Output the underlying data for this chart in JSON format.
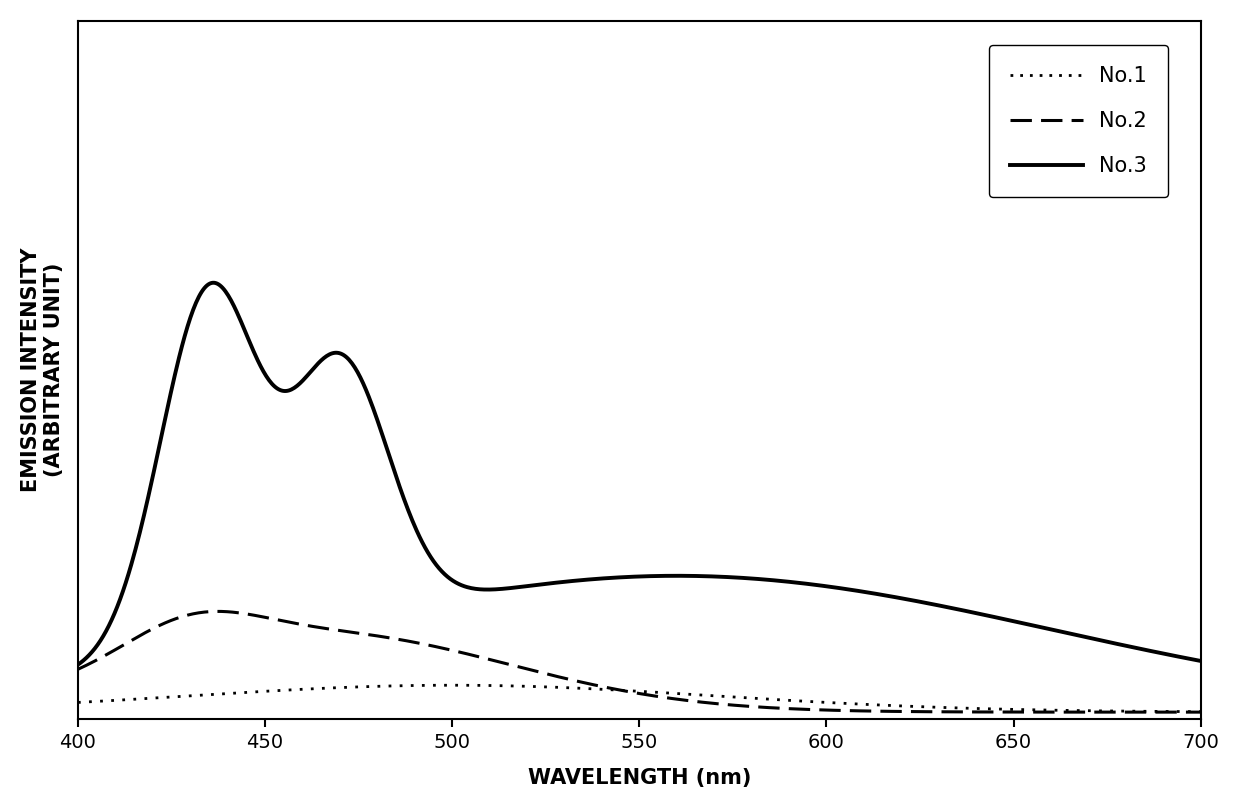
{
  "xlabel": "WAVELENGTH (nm)",
  "ylabel": "EMISSION INTENSITY\n(ARBITRARY UNIT)",
  "xmin": 400,
  "xmax": 700,
  "xticks": [
    400,
    450,
    500,
    550,
    600,
    650,
    700
  ],
  "legend_labels": [
    "No.1",
    "No.2",
    "No.3"
  ],
  "background_color": "#ffffff",
  "line_color": "#000000",
  "label_fontsize": 15,
  "tick_fontsize": 14,
  "legend_fontsize": 15,
  "ylim_max": 1.6
}
